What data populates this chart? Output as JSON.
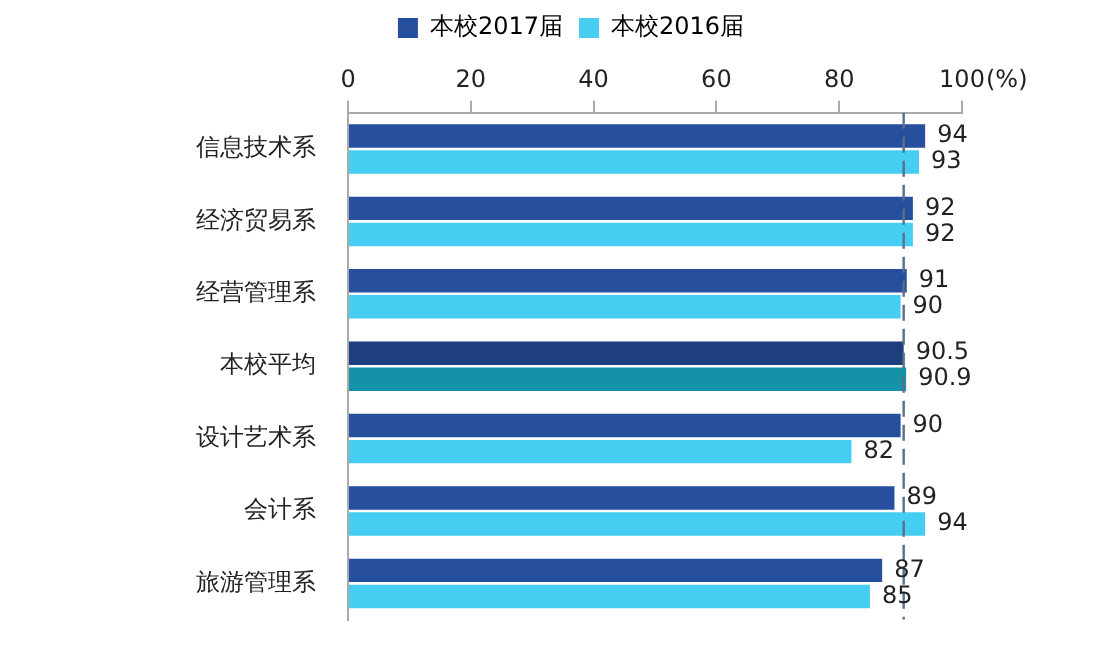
{
  "chart_data": {
    "type": "bar",
    "orientation": "horizontal",
    "xlabel": "(%)",
    "categories": [
      "信息技术系",
      "经济贸易系",
      "经营管理系",
      "本校平均",
      "设计艺术系",
      "会计系",
      "旅游管理系"
    ],
    "series": [
      {
        "name": "本校2017届",
        "color": "#264f9e",
        "colors": [
          "#264f9e",
          "#264f9e",
          "#264f9e",
          "#1e3f7e",
          "#264f9e",
          "#264f9e",
          "#264f9e"
        ],
        "values": [
          94,
          92,
          91,
          90.5,
          90,
          89,
          87
        ]
      },
      {
        "name": "本校2016届",
        "color": "#45cdf2",
        "colors": [
          "#45cdf2",
          "#45cdf2",
          "#45cdf2",
          "#1591a8",
          "#45cdf2",
          "#45cdf2",
          "#45cdf2"
        ],
        "values": [
          93,
          92,
          90,
          90.9,
          82,
          94,
          85
        ]
      }
    ],
    "xlim": [
      0,
      100
    ],
    "xticks": [
      0,
      20,
      40,
      60,
      80,
      100
    ],
    "grid": false,
    "legend": "top",
    "data_labels": true,
    "ref_lines": [
      {
        "axis": "x",
        "value": 90.5,
        "color": "#5a6f8a",
        "line_style": "dashed"
      }
    ]
  }
}
